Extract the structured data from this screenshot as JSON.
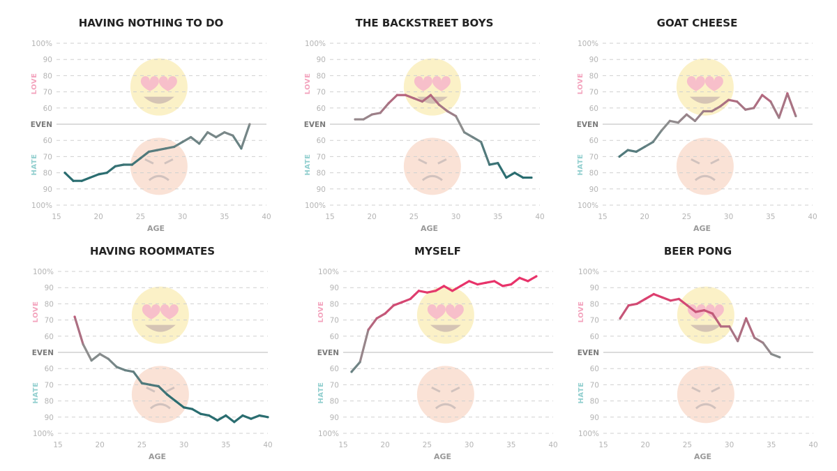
{
  "colors": {
    "love": "#e8336a",
    "neutral": "#8e8e8e",
    "hate": "#2a6d70",
    "love_label": "#f3a3bd",
    "hate_label": "#92cfcf",
    "grid": "#cfcfcf"
  },
  "chart_data": [
    {
      "type": "line",
      "title": "HAVING NOTHING TO DO",
      "xlabel": "AGE",
      "love_label": "LOVE",
      "hate_label": "HATE",
      "xlim": [
        15,
        40
      ],
      "x_ticks": [
        "15",
        "20",
        "25",
        "30",
        "35",
        "40"
      ],
      "y_ticks": [
        "100%",
        "90",
        "80",
        "70",
        "60",
        "EVEN",
        "60",
        "70",
        "80",
        "90",
        "100%"
      ],
      "grid": true,
      "points": [
        {
          "x": 16,
          "hate": 80
        },
        {
          "x": 17,
          "hate": 85
        },
        {
          "x": 18,
          "hate": 85
        },
        {
          "x": 19,
          "hate": 83
        },
        {
          "x": 20,
          "hate": 81
        },
        {
          "x": 21,
          "hate": 80
        },
        {
          "x": 22,
          "hate": 76
        },
        {
          "x": 23,
          "hate": 75
        },
        {
          "x": 24,
          "hate": 75
        },
        {
          "x": 25,
          "hate": 71
        },
        {
          "x": 26,
          "hate": 67
        },
        {
          "x": 27,
          "hate": 66
        },
        {
          "x": 28,
          "hate": 65
        },
        {
          "x": 29,
          "hate": 64
        },
        {
          "x": 30,
          "hate": 61
        },
        {
          "x": 31,
          "hate": 58
        },
        {
          "x": 32,
          "hate": 62
        },
        {
          "x": 33,
          "hate": 55
        },
        {
          "x": 34,
          "hate": 58
        },
        {
          "x": 35,
          "hate": 55
        },
        {
          "x": 36,
          "hate": 57
        },
        {
          "x": 37,
          "hate": 65
        },
        {
          "x": 38,
          "love": 50
        }
      ]
    },
    {
      "type": "line",
      "title": "THE BACKSTREET BOYS",
      "xlabel": "AGE",
      "love_label": "LOVE",
      "hate_label": "HATE",
      "xlim": [
        15,
        40
      ],
      "x_ticks": [
        "15",
        "20",
        "25",
        "30",
        "35",
        "40"
      ],
      "y_ticks": [
        "100%",
        "90",
        "80",
        "70",
        "60",
        "EVEN",
        "60",
        "70",
        "80",
        "90",
        "100%"
      ],
      "grid": true,
      "points": [
        {
          "x": 18,
          "love": 53
        },
        {
          "x": 19,
          "love": 53
        },
        {
          "x": 20,
          "love": 56
        },
        {
          "x": 21,
          "love": 57
        },
        {
          "x": 22,
          "love": 63
        },
        {
          "x": 23,
          "love": 68
        },
        {
          "x": 24,
          "love": 68
        },
        {
          "x": 25,
          "love": 66
        },
        {
          "x": 26,
          "love": 64
        },
        {
          "x": 27,
          "love": 68
        },
        {
          "x": 28,
          "love": 62
        },
        {
          "x": 29,
          "love": 58
        },
        {
          "x": 30,
          "love": 55
        },
        {
          "x": 31,
          "hate": 55
        },
        {
          "x": 32,
          "hate": 58
        },
        {
          "x": 33,
          "hate": 61
        },
        {
          "x": 34,
          "hate": 75
        },
        {
          "x": 35,
          "hate": 74
        },
        {
          "x": 36,
          "hate": 83
        },
        {
          "x": 37,
          "hate": 80
        },
        {
          "x": 38,
          "hate": 83
        },
        {
          "x": 39,
          "hate": 83
        }
      ]
    },
    {
      "type": "line",
      "title": "GOAT CHEESE",
      "xlabel": "AGE",
      "love_label": "LOVE",
      "hate_label": "HATE",
      "xlim": [
        15,
        40
      ],
      "x_ticks": [
        "15",
        "20",
        "25",
        "30",
        "35",
        "40"
      ],
      "y_ticks": [
        "100%",
        "90",
        "80",
        "70",
        "60",
        "EVEN",
        "60",
        "70",
        "80",
        "90",
        "100%"
      ],
      "grid": true,
      "points": [
        {
          "x": 17,
          "hate": 70
        },
        {
          "x": 18,
          "hate": 66
        },
        {
          "x": 19,
          "hate": 67
        },
        {
          "x": 20,
          "hate": 64
        },
        {
          "x": 21,
          "hate": 61
        },
        {
          "x": 22,
          "hate": 54
        },
        {
          "x": 23,
          "love": 52
        },
        {
          "x": 24,
          "love": 51
        },
        {
          "x": 25,
          "love": 56
        },
        {
          "x": 26,
          "love": 52
        },
        {
          "x": 27,
          "love": 58
        },
        {
          "x": 28,
          "love": 58
        },
        {
          "x": 29,
          "love": 61
        },
        {
          "x": 30,
          "love": 65
        },
        {
          "x": 31,
          "love": 64
        },
        {
          "x": 32,
          "love": 59
        },
        {
          "x": 33,
          "love": 60
        },
        {
          "x": 34,
          "love": 68
        },
        {
          "x": 35,
          "love": 64
        },
        {
          "x": 36,
          "love": 54
        },
        {
          "x": 37,
          "love": 69
        },
        {
          "x": 38,
          "love": 55
        }
      ]
    },
    {
      "type": "line",
      "title": "HAVING ROOMMATES",
      "xlabel": "AGE",
      "love_label": "LOVE",
      "hate_label": "HATE",
      "xlim": [
        15,
        40
      ],
      "x_ticks": [
        "15",
        "20",
        "25",
        "30",
        "35",
        "40"
      ],
      "y_ticks": [
        "100%",
        "90",
        "80",
        "70",
        "60",
        "EVEN",
        "60",
        "70",
        "80",
        "90",
        "100%"
      ],
      "grid": true,
      "points": [
        {
          "x": 17,
          "love": 72
        },
        {
          "x": 18,
          "love": 55
        },
        {
          "x": 19,
          "hate": 55
        },
        {
          "x": 20,
          "hate": 51
        },
        {
          "x": 21,
          "hate": 54
        },
        {
          "x": 22,
          "hate": 59
        },
        {
          "x": 23,
          "hate": 61
        },
        {
          "x": 24,
          "hate": 62
        },
        {
          "x": 25,
          "hate": 69
        },
        {
          "x": 26,
          "hate": 70
        },
        {
          "x": 27,
          "hate": 71
        },
        {
          "x": 28,
          "hate": 76
        },
        {
          "x": 29,
          "hate": 80
        },
        {
          "x": 30,
          "hate": 84
        },
        {
          "x": 31,
          "hate": 85
        },
        {
          "x": 32,
          "hate": 88
        },
        {
          "x": 33,
          "hate": 89
        },
        {
          "x": 34,
          "hate": 92
        },
        {
          "x": 35,
          "hate": 89
        },
        {
          "x": 36,
          "hate": 93
        },
        {
          "x": 37,
          "hate": 89
        },
        {
          "x": 38,
          "hate": 91
        },
        {
          "x": 39,
          "hate": 89
        },
        {
          "x": 40,
          "hate": 90
        }
      ]
    },
    {
      "type": "line",
      "title": "MYSELF",
      "xlabel": "AGE",
      "love_label": "LOVE",
      "hate_label": "HATE",
      "xlim": [
        15,
        40
      ],
      "x_ticks": [
        "15",
        "20",
        "25",
        "30",
        "35",
        "40"
      ],
      "y_ticks": [
        "100%",
        "90",
        "80",
        "70",
        "60",
        "EVEN",
        "60",
        "70",
        "80",
        "90",
        "100%"
      ],
      "grid": true,
      "points": [
        {
          "x": 16,
          "hate": 62
        },
        {
          "x": 17,
          "hate": 56
        },
        {
          "x": 18,
          "love": 64
        },
        {
          "x": 19,
          "love": 71
        },
        {
          "x": 20,
          "love": 74
        },
        {
          "x": 21,
          "love": 79
        },
        {
          "x": 22,
          "love": 81
        },
        {
          "x": 23,
          "love": 83
        },
        {
          "x": 24,
          "love": 88
        },
        {
          "x": 25,
          "love": 87
        },
        {
          "x": 26,
          "love": 88
        },
        {
          "x": 27,
          "love": 91
        },
        {
          "x": 28,
          "love": 88
        },
        {
          "x": 29,
          "love": 91
        },
        {
          "x": 30,
          "love": 94
        },
        {
          "x": 31,
          "love": 92
        },
        {
          "x": 32,
          "love": 93
        },
        {
          "x": 33,
          "love": 94
        },
        {
          "x": 34,
          "love": 91
        },
        {
          "x": 35,
          "love": 92
        },
        {
          "x": 36,
          "love": 96
        },
        {
          "x": 37,
          "love": 94
        },
        {
          "x": 38,
          "love": 97
        }
      ]
    },
    {
      "type": "line",
      "title": "BEER PONG",
      "xlabel": "AGE",
      "love_label": "LOVE",
      "hate_label": "HATE",
      "xlim": [
        15,
        40
      ],
      "x_ticks": [
        "15",
        "20",
        "25",
        "30",
        "35",
        "40"
      ],
      "y_ticks": [
        "100%",
        "90",
        "80",
        "70",
        "60",
        "EVEN",
        "60",
        "70",
        "80",
        "90",
        "100%"
      ],
      "grid": true,
      "points": [
        {
          "x": 17,
          "love": 71
        },
        {
          "x": 18,
          "love": 79
        },
        {
          "x": 19,
          "love": 80
        },
        {
          "x": 20,
          "love": 83
        },
        {
          "x": 21,
          "love": 86
        },
        {
          "x": 22,
          "love": 84
        },
        {
          "x": 23,
          "love": 82
        },
        {
          "x": 24,
          "love": 83
        },
        {
          "x": 25,
          "love": 79
        },
        {
          "x": 26,
          "love": 75
        },
        {
          "x": 27,
          "love": 76
        },
        {
          "x": 28,
          "love": 74
        },
        {
          "x": 29,
          "love": 66
        },
        {
          "x": 30,
          "love": 66
        },
        {
          "x": 31,
          "love": 57
        },
        {
          "x": 32,
          "love": 71
        },
        {
          "x": 33,
          "love": 59
        },
        {
          "x": 34,
          "love": 56
        },
        {
          "x": 35,
          "hate": 51
        },
        {
          "x": 36,
          "hate": 53
        }
      ]
    }
  ]
}
